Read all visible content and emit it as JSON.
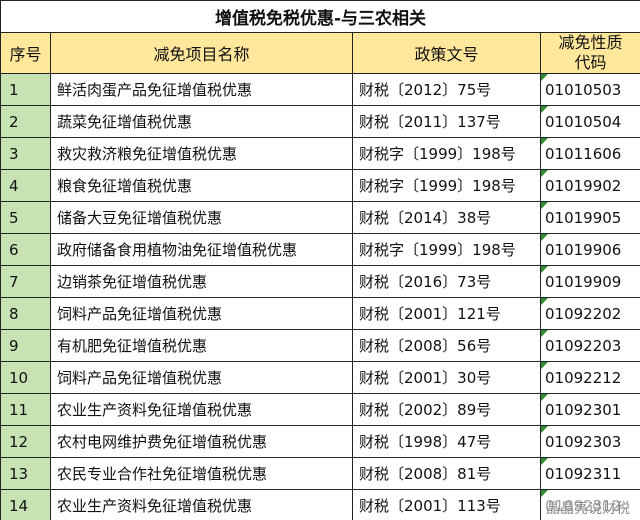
{
  "table": {
    "title": "增值税免税优惠-与三农相关",
    "header": [
      "序号",
      "减免项目名称",
      "政策文号",
      "减免性质代码"
    ],
    "rows": [
      [
        "1",
        "鲜活肉蛋产品免征增值税优惠",
        "财税〔2012〕75号",
        "01010503"
      ],
      [
        "2",
        "蔬菜免征增值税优惠",
        "财税〔2011〕137号",
        "01010504"
      ],
      [
        "3",
        "救灾救济粮免征增值税优惠",
        "财税字〔1999〕198号",
        "01011606"
      ],
      [
        "4",
        "粮食免征增值税优惠",
        "财税字〔1999〕198号",
        "01019902"
      ],
      [
        "5",
        "储备大豆免征增值税优惠",
        "财税〔2014〕38号",
        "01019905"
      ],
      [
        "6",
        "政府储备食用植物油免征增值税优惠",
        "财税字〔1999〕198号",
        "01019906"
      ],
      [
        "7",
        "边销茶免征增值税优惠",
        "财税〔2016〕73号",
        "01019909"
      ],
      [
        "8",
        "饲料产品免征增值税优惠",
        "财税〔2001〕121号",
        "01092202"
      ],
      [
        "9",
        "有机肥免征增值税优惠",
        "财税〔2008〕56号",
        "01092203"
      ],
      [
        "10",
        "饲料产品免征增值税优惠",
        "财税〔2001〕30号",
        "01092212"
      ],
      [
        "11",
        "农业生产资料免征增值税优惠",
        "财税〔2002〕89号",
        "01092301"
      ],
      [
        "12",
        "农村电网维护费免征增值税优惠",
        "财税〔1998〕47号",
        "01092303"
      ],
      [
        "13",
        "农民专业合作社免征增值税优惠",
        "财税〔2008〕81号",
        "01092311"
      ],
      [
        "14",
        "农业生产资料免征增值税优惠",
        "财税〔2001〕113号",
        "01092312"
      ]
    ]
  },
  "watermark": "晶晶亮说财税"
}
